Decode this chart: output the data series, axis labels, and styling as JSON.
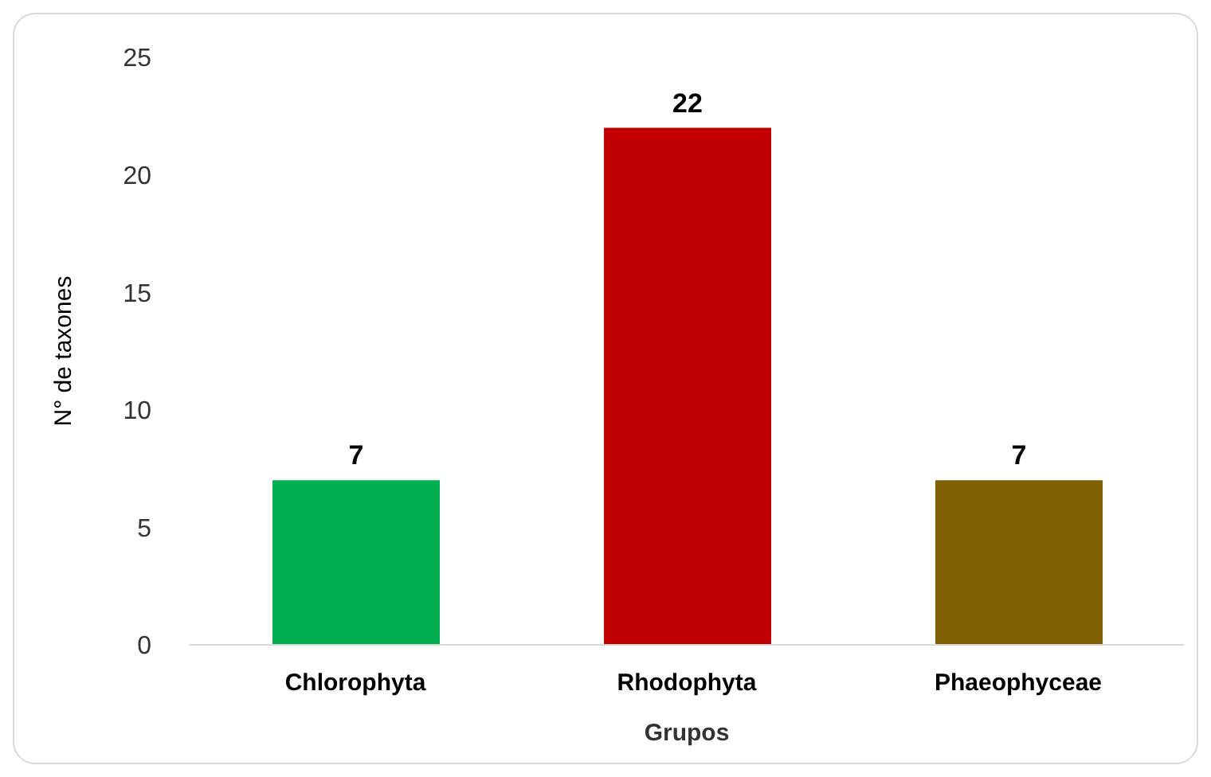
{
  "chart_data": {
    "type": "bar",
    "xlabel": "Grupos",
    "ylabel": "N° de taxones",
    "categories": [
      "Chlorophyta",
      "Rhodophyta",
      "Phaeophyceae"
    ],
    "values": [
      7,
      22,
      7
    ],
    "colors": [
      "#00b050",
      "#c00000",
      "#7f6000"
    ],
    "ylim": [
      0,
      25
    ],
    "yticks": [
      0,
      5,
      10,
      15,
      20,
      25
    ],
    "grid": false,
    "legend": false,
    "data_labels": true
  }
}
